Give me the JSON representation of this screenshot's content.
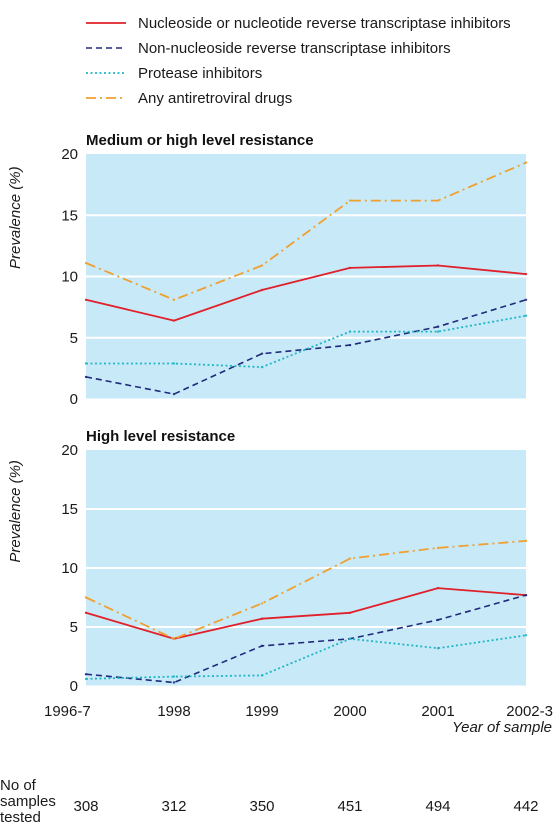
{
  "colors": {
    "panel_bg": "#c8e9f7",
    "nrti": "#e0202a",
    "nnrti": "#1f2a7c",
    "pi": "#1fb6c6",
    "any": "#f0a030"
  },
  "chart_data": {
    "type": "line",
    "categories": [
      "1996-7",
      "1998",
      "1999",
      "2000",
      "2001",
      "2002-3"
    ],
    "xlabel": "Year of sample",
    "series_names": [
      "Nucleoside or nucleotide reverse transcriptase inhibitors",
      "Non-nucleoside reverse transcriptase inhibitors",
      "Protease inhibitors",
      "Any antiretroviral drugs"
    ],
    "panels": [
      {
        "title": "Medium or high level resistance",
        "ylabel": "Prevalence (%)",
        "ylim": [
          0,
          20
        ],
        "yticks": [
          0,
          5,
          10,
          15,
          20
        ],
        "series": [
          {
            "name": "Nucleoside or nucleotide reverse transcriptase inhibitors",
            "values": [
              8.1,
              6.4,
              8.9,
              10.7,
              10.9,
              10.2
            ]
          },
          {
            "name": "Non-nucleoside reverse transcriptase inhibitors",
            "values": [
              1.8,
              0.4,
              3.7,
              4.4,
              5.9,
              8.1
            ]
          },
          {
            "name": "Protease inhibitors",
            "values": [
              2.9,
              2.9,
              2.6,
              5.5,
              5.5,
              6.8
            ]
          },
          {
            "name": "Any antiretroviral drugs",
            "values": [
              11.1,
              8.1,
              10.9,
              16.2,
              16.2,
              19.3
            ]
          }
        ]
      },
      {
        "title": "High level resistance",
        "ylabel": "Prevalence (%)",
        "ylim": [
          0,
          20
        ],
        "yticks": [
          0,
          5,
          10,
          15,
          20
        ],
        "series": [
          {
            "name": "Nucleoside or nucleotide reverse transcriptase inhibitors",
            "values": [
              6.2,
              4.0,
              5.7,
              6.2,
              8.3,
              7.7
            ]
          },
          {
            "name": "Non-nucleoside reverse transcriptase inhibitors",
            "values": [
              1.0,
              0.3,
              3.4,
              4.0,
              5.6,
              7.7
            ]
          },
          {
            "name": "Protease inhibitors",
            "values": [
              0.6,
              0.8,
              0.9,
              4.0,
              3.2,
              4.3
            ]
          },
          {
            "name": "Any antiretroviral drugs",
            "values": [
              7.5,
              4.0,
              7.0,
              10.8,
              11.7,
              12.3
            ]
          }
        ]
      }
    ],
    "samples": {
      "label": "No of samples tested",
      "label_lines": [
        "No of",
        "samples",
        "tested"
      ],
      "values": [
        "308",
        "312",
        "350",
        "451",
        "494",
        "442"
      ]
    }
  }
}
